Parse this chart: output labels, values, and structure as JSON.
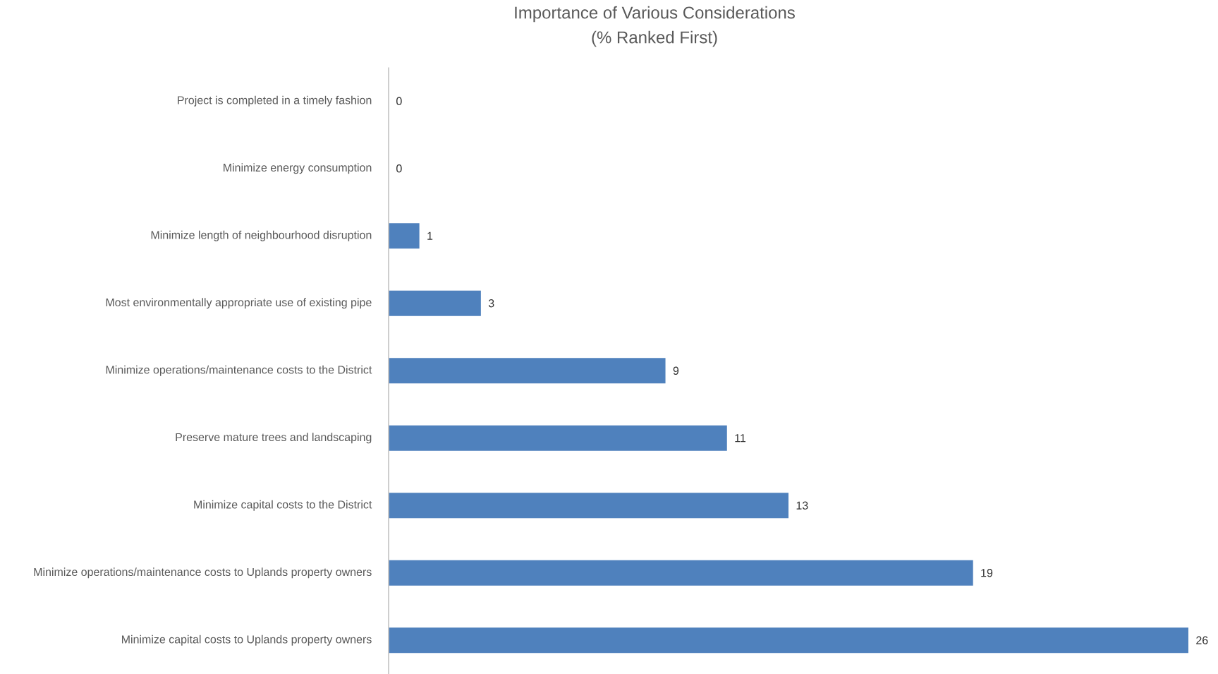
{
  "chart_data": {
    "type": "bar",
    "orientation": "horizontal",
    "title": "Importance of Various Considerations",
    "subtitle": "(% Ranked First)",
    "categories": [
      "Project is completed in a timely fashion",
      "Minimize energy consumption",
      "Minimize length of neighbourhood disruption",
      "Most environmentally appropriate use of existing pipe",
      "Minimize operations/maintenance costs to the District",
      "Preserve mature trees and landscaping",
      "Minimize capital costs to the District",
      "Minimize operations/maintenance costs to Uplands property owners",
      "Minimize capital costs to Uplands property owners"
    ],
    "values": [
      0,
      0,
      1,
      3,
      9,
      11,
      13,
      19,
      26
    ],
    "color": "#4f81bd",
    "data_labels": true
  }
}
